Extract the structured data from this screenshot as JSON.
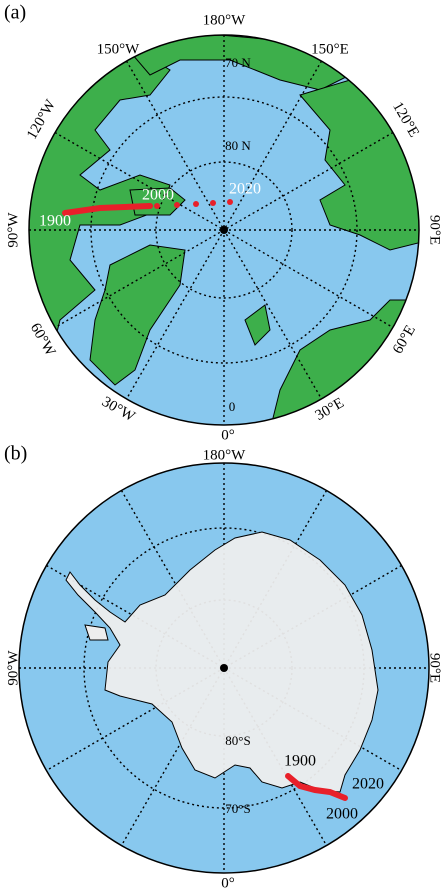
{
  "panels": [
    {
      "label": "(a)",
      "lon_labels": [
        "180°W",
        "150°W",
        "150°E",
        "120°W",
        "120°E",
        "90°W",
        "90°E",
        "60°W",
        "60°E",
        "30°W",
        "30°E",
        "0°"
      ],
      "lat_labels": [
        "70 N",
        "80 N",
        "0"
      ],
      "year_labels": [
        "1900",
        "2000",
        "2020"
      ]
    },
    {
      "label": "(b)",
      "lon_labels": [
        "180°W",
        "90°W",
        "90°E",
        "0°"
      ],
      "lat_labels": [
        "80°S",
        "70°S"
      ],
      "year_labels": [
        "1900",
        "2000",
        "2020"
      ]
    }
  ]
}
